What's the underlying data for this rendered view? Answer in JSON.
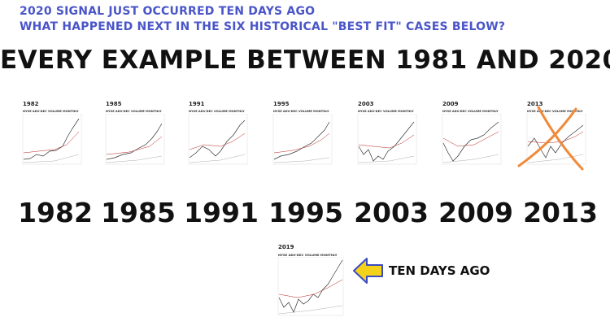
{
  "header": {
    "line1": "2020 SIGNAL JUST OCCURRED TEN DAYS AGO",
    "line2": "WHAT HAPPENED NEXT IN THE SIX HISTORICAL \"BEST FIT\" CASES BELOW?",
    "headline": "EVERY EXAMPLE BETWEEN 1981 AND 2020",
    "color": "#4a55c8"
  },
  "examples": [
    {
      "year": "1982",
      "chart_title": "NYSE ADV-DEC VOLUME MONTHLY",
      "label": "1982"
    },
    {
      "year": "1985",
      "chart_title": "NYSE ADV-DEC VOLUME MONTHLY",
      "label": "1985"
    },
    {
      "year": "1991",
      "chart_title": "NYSE ADV-DEC VOLUME MONTHLY",
      "label": "1991"
    },
    {
      "year": "1995",
      "chart_title": "NYSE ADV-DEC VOLUME MONTHLY",
      "label": "1995"
    },
    {
      "year": "2003",
      "chart_title": "NYSE ADV-DEC VOLUME MONTHLY",
      "label": "2003"
    },
    {
      "year": "2009",
      "chart_title": "NYSE ADV-DEC VOLUME MONTHLY",
      "label": "2009"
    },
    {
      "year": "2013",
      "chart_title": "NYSE ADV-DEC VOLUME MONTHLY",
      "label": "2013",
      "crossed_out": true
    }
  ],
  "current": {
    "year": "2019",
    "chart_title": "NYSE ADV-DEC VOLUME MONTHLY",
    "pointer_label": "TEN DAYS AGO",
    "arrow_color": "#f5d21a",
    "arrow_outline": "#3a4bc2"
  },
  "cross_color": "#f08a3a"
}
